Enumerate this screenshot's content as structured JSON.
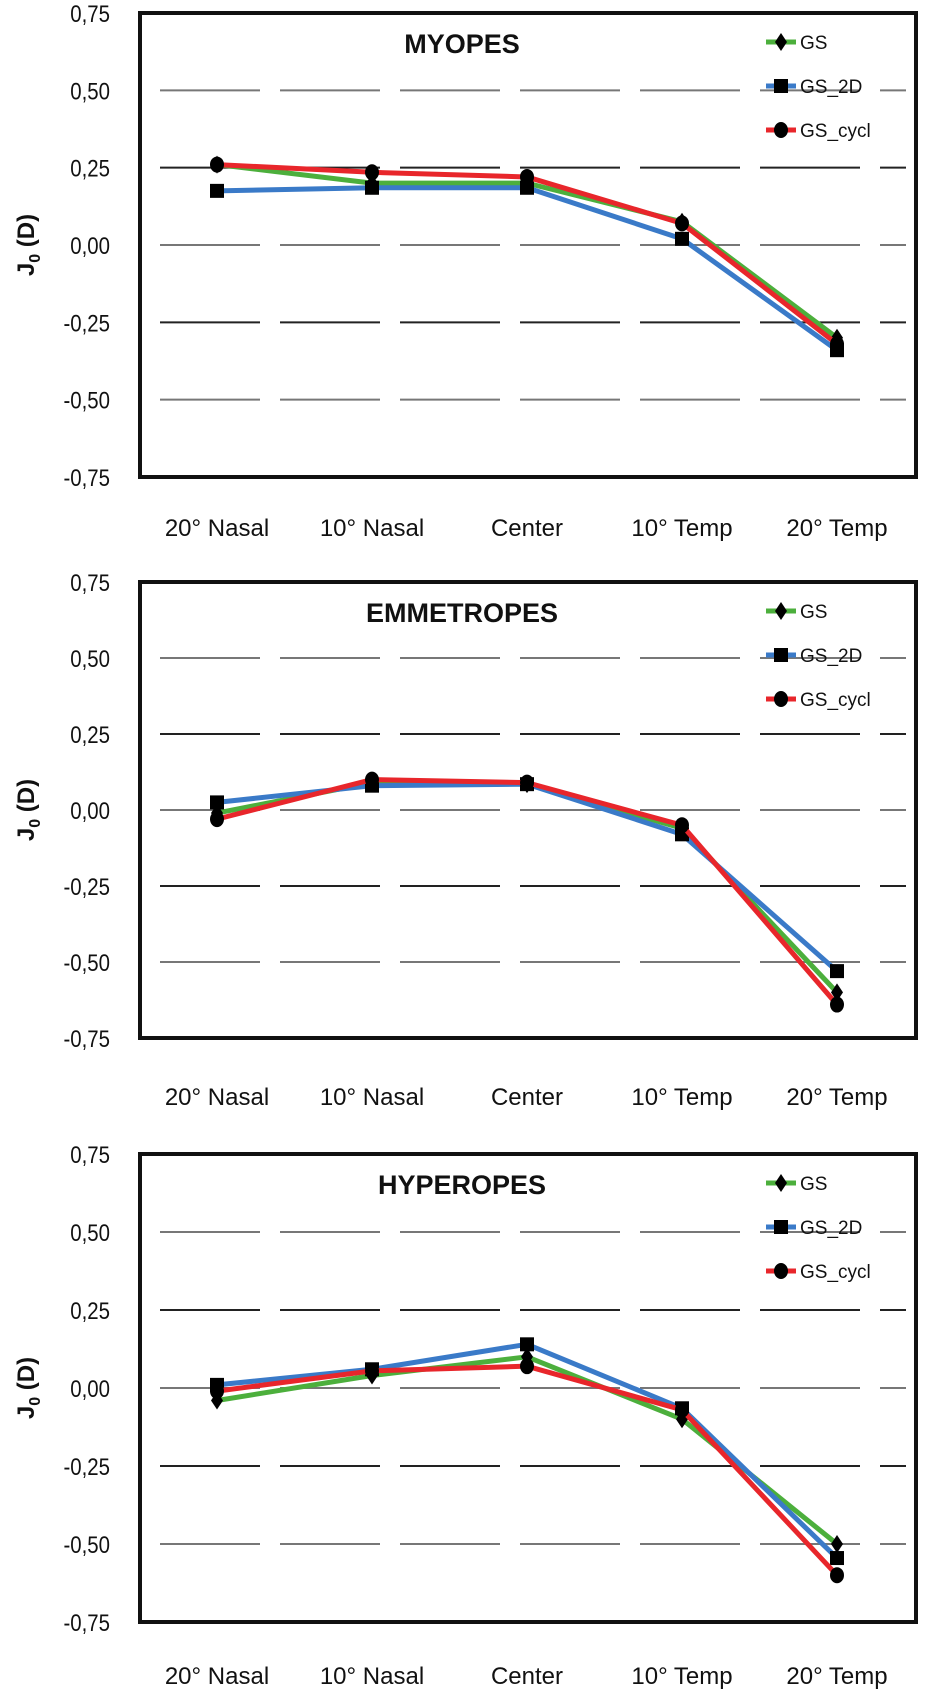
{
  "chart_data": [
    {
      "type": "line",
      "title": "MYOPES",
      "ylabel": "J0 (D)",
      "ylabel_main": "J",
      "ylabel_sub": "0",
      "ylabel_unit": " (D)",
      "categories": [
        "20° Nasal",
        "10° Nasal",
        "Center",
        "10° Temp",
        "20° Temp"
      ],
      "ylim": [
        -0.75,
        0.75
      ],
      "yticks": [
        "0,75",
        "0,50",
        "0,25",
        "0,00",
        "-0,25",
        "-0,50",
        "-0,75"
      ],
      "grid": true,
      "legend": "top-right",
      "series": [
        {
          "name": "GS",
          "marker": "diamond",
          "color": "#4caf3c",
          "values": [
            0.26,
            0.2,
            0.2,
            0.075,
            -0.3
          ]
        },
        {
          "name": "GS_2D",
          "marker": "square",
          "color": "#3a7ac8",
          "values": [
            0.175,
            0.185,
            0.185,
            0.02,
            -0.34
          ]
        },
        {
          "name": "GS_cycl",
          "marker": "circle",
          "color": "#e8262b",
          "values": [
            0.26,
            0.235,
            0.22,
            0.07,
            -0.32
          ]
        }
      ]
    },
    {
      "type": "line",
      "title": "EMMETROPES",
      "ylabel": "J0 (D)",
      "ylabel_main": "J",
      "ylabel_sub": "0",
      "ylabel_unit": " (D)",
      "categories": [
        "20° Nasal",
        "10° Nasal",
        "Center",
        "10° Temp",
        "20° Temp"
      ],
      "ylim": [
        -0.75,
        0.75
      ],
      "yticks": [
        "0,75",
        "0,50",
        "0,25",
        "0,00",
        "-0,25",
        "-0,50",
        "-0,75"
      ],
      "grid": true,
      "legend": "top-right",
      "series": [
        {
          "name": "GS",
          "marker": "diamond",
          "color": "#4caf3c",
          "values": [
            -0.01,
            0.09,
            0.085,
            -0.06,
            -0.6
          ]
        },
        {
          "name": "GS_2D",
          "marker": "square",
          "color": "#3a7ac8",
          "values": [
            0.025,
            0.08,
            0.085,
            -0.08,
            -0.53
          ]
        },
        {
          "name": "GS_cycl",
          "marker": "circle",
          "color": "#e8262b",
          "values": [
            -0.03,
            0.1,
            0.09,
            -0.05,
            -0.64
          ]
        }
      ]
    },
    {
      "type": "line",
      "title": "HYPEROPES",
      "ylabel": "J0 (D)",
      "ylabel_main": "J",
      "ylabel_sub": "0",
      "ylabel_unit": " (D)",
      "categories": [
        "20° Nasal",
        "10° Nasal",
        "Center",
        "10° Temp",
        "20° Temp"
      ],
      "ylim": [
        -0.75,
        0.75
      ],
      "yticks": [
        "0,75",
        "0,50",
        "0,25",
        "0,00",
        "-0,25",
        "-0,50",
        "-0,75"
      ],
      "grid": true,
      "legend": "top-right",
      "series": [
        {
          "name": "GS",
          "marker": "diamond",
          "color": "#4caf3c",
          "values": [
            -0.04,
            0.04,
            0.1,
            -0.1,
            -0.5
          ]
        },
        {
          "name": "GS_2D",
          "marker": "square",
          "color": "#3a7ac8",
          "values": [
            0.01,
            0.06,
            0.14,
            -0.065,
            -0.545
          ]
        },
        {
          "name": "GS_cycl",
          "marker": "circle",
          "color": "#e8262b",
          "values": [
            -0.01,
            0.055,
            0.07,
            -0.07,
            -0.6
          ]
        }
      ]
    }
  ]
}
